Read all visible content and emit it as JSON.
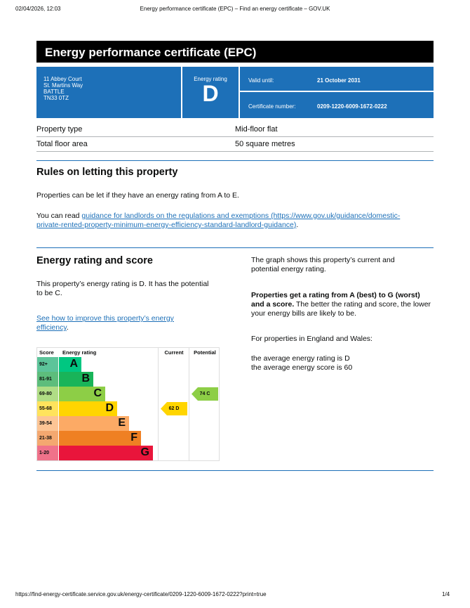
{
  "browser": {
    "datetime": "02/04/2026, 12:03",
    "title": "Energy performance certificate (EPC) – Find an energy certificate – GOV.UK",
    "url": "https://find-energy-certificate.service.gov.uk/energy-certificate/0209-1220-6009-1672-0222?print=true",
    "page": "1/4"
  },
  "header": {
    "title": "Energy performance certificate (EPC)"
  },
  "summary": {
    "address": [
      "11 Abbey Court",
      "St. Martins Way",
      "BATTLE",
      "TN33 0TZ"
    ],
    "rating_label": "Energy rating",
    "rating": "D",
    "valid_label": "Valid until:",
    "valid_value": "21 October 2031",
    "cert_label": "Certificate number:",
    "cert_value": "0209-1220-6009-1672-0222"
  },
  "details": [
    {
      "k": "Property type",
      "v": "Mid-floor flat"
    },
    {
      "k": "Total floor area",
      "v": "50 square metres"
    }
  ],
  "letting": {
    "heading": "Rules on letting this property",
    "p1": "Properties can be let if they have an energy rating from A to E.",
    "p2_pre": "You can read ",
    "p2_link": "guidance for landlords on the regulations and exemptions (https://www.gov.uk/guidance/domestic-private-rented-property-minimum-energy-efficiency-standard-landlord-guidance)",
    "p2_post": "."
  },
  "score": {
    "heading": "Energy rating and score",
    "p1": "This property’s energy rating is D. It has the potential to be C.",
    "link": "See how to improve this property’s energy efficiency",
    "link_post": ".",
    "r1": "The graph shows this property’s current and potential energy rating.",
    "r2_bold": "Properties get a rating from A (best) to G (worst) and a score.",
    "r2": " The better the rating and score, the lower your energy bills are likely to be.",
    "r3": "For properties in England and Wales:",
    "r4": "the average energy rating is D",
    "r5": "the average energy score is 60"
  },
  "chart_data": {
    "type": "table",
    "headers": [
      "Score",
      "Energy rating",
      "Current",
      "Potential"
    ],
    "bands": [
      {
        "score": "92+",
        "letter": "A",
        "color": "#00c781",
        "sc": "#5cc49a"
      },
      {
        "score": "81-91",
        "letter": "B",
        "color": "#19b459",
        "sc": "#5dbd7c"
      },
      {
        "score": "69-80",
        "letter": "C",
        "color": "#8dce46",
        "sc": "#b0dd85"
      },
      {
        "score": "55-68",
        "letter": "D",
        "color": "#ffd500",
        "sc": "#ffe35c"
      },
      {
        "score": "39-54",
        "letter": "E",
        "color": "#fcaa65",
        "sc": "#fdc595"
      },
      {
        "score": "21-38",
        "letter": "F",
        "color": "#ef8023",
        "sc": "#f4a870"
      },
      {
        "score": "1-20",
        "letter": "G",
        "color": "#e9153b",
        "sc": "#f0728a"
      }
    ],
    "current": {
      "score": 62,
      "letter": "D",
      "label": "62  D",
      "color": "#ffd500"
    },
    "potential": {
      "score": 74,
      "letter": "C",
      "label": "74  C",
      "color": "#8dce46"
    }
  }
}
